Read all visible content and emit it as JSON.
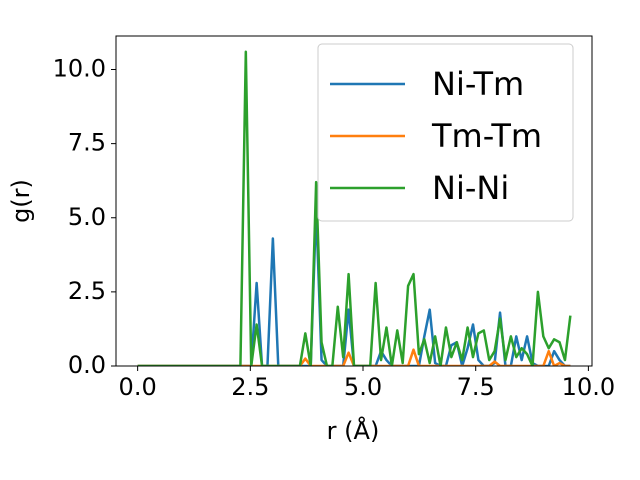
{
  "chart_data": {
    "type": "line",
    "xlabel": "r (Å)",
    "ylabel": "g(r)",
    "x": [
      0,
      0.12,
      0.24,
      0.36,
      0.48,
      0.6,
      0.72,
      0.84,
      0.96,
      1.08,
      1.2,
      1.32,
      1.44,
      1.56,
      1.68,
      1.8,
      1.92,
      2.04,
      2.16,
      2.28,
      2.4,
      2.52,
      2.64,
      2.76,
      2.88,
      3,
      3.12,
      3.24,
      3.36,
      3.48,
      3.6,
      3.72,
      3.84,
      3.96,
      4.08,
      4.2,
      4.32,
      4.44,
      4.56,
      4.68,
      4.8,
      4.92,
      5.04,
      5.16,
      5.28,
      5.4,
      5.52,
      5.64,
      5.76,
      5.88,
      6,
      6.12,
      6.24,
      6.36,
      6.48,
      6.6,
      6.72,
      6.84,
      6.96,
      7.08,
      7.2,
      7.32,
      7.44,
      7.56,
      7.68,
      7.8,
      7.92,
      8.04,
      8.16,
      8.28,
      8.4,
      8.52,
      8.64,
      8.76,
      8.88,
      9,
      9.12,
      9.24,
      9.36,
      9.48,
      9.6
    ],
    "series": [
      {
        "name": "Ni-Tm",
        "color": "#1f77b4",
        "values": [
          0,
          0,
          0,
          0,
          0,
          0,
          0,
          0,
          0,
          0,
          0,
          0,
          0,
          0,
          0,
          0,
          0,
          0,
          0,
          0,
          0,
          0,
          2.8,
          0,
          0,
          4.3,
          0,
          0,
          0,
          0,
          0,
          0,
          0,
          5.3,
          0.2,
          0,
          0,
          0,
          0,
          1.9,
          0,
          0,
          0,
          0,
          0,
          0.5,
          0.2,
          0,
          0,
          0,
          0,
          0,
          0,
          1,
          1.9,
          0.1,
          0,
          0,
          0.7,
          0.8,
          0,
          0.6,
          1.4,
          0.2,
          0,
          0,
          0.1,
          1.8,
          0,
          0,
          1,
          0.2,
          1,
          0.1,
          0,
          0,
          0,
          0.5,
          0.2,
          0,
          0
        ]
      },
      {
        "name": "Tm-Tm",
        "color": "#ff7f0e",
        "values": [
          0,
          0,
          0,
          0,
          0,
          0,
          0,
          0,
          0,
          0,
          0,
          0,
          0,
          0,
          0,
          0,
          0,
          0,
          0,
          0,
          0,
          0,
          0,
          0,
          0,
          0,
          0,
          0,
          0,
          0,
          0,
          0.25,
          0,
          0,
          0,
          0,
          0,
          0,
          0,
          0.45,
          0,
          0,
          0,
          0,
          0,
          0,
          0,
          0,
          0,
          0,
          0,
          0.55,
          0,
          0,
          0,
          0,
          0,
          0,
          0,
          0,
          0,
          0,
          0,
          0,
          0,
          0,
          0.15,
          0,
          0,
          0,
          0,
          0,
          0,
          0,
          0,
          0,
          0.5,
          0,
          0.1,
          0,
          0
        ]
      },
      {
        "name": "Ni-Ni",
        "color": "#2ca02c",
        "values": [
          0,
          0,
          0,
          0,
          0,
          0,
          0,
          0,
          0,
          0,
          0,
          0,
          0,
          0,
          0,
          0,
          0,
          0,
          0,
          0,
          10.6,
          0,
          1.4,
          0,
          0,
          0,
          0,
          0,
          0,
          0,
          0,
          1.1,
          0,
          6.2,
          0.8,
          0,
          0,
          2,
          0.3,
          3.1,
          0,
          0,
          0,
          0,
          2.8,
          0.2,
          1.3,
          0,
          1.2,
          0.1,
          2.7,
          3.1,
          0.4,
          0.9,
          0.1,
          1,
          0,
          1.3,
          0.3,
          0.8,
          0.2,
          1.3,
          0.3,
          1.1,
          1.2,
          0.2,
          0.5,
          1.6,
          0.2,
          1,
          0.3,
          0.6,
          0.4,
          0,
          2.5,
          1,
          0.6,
          0.9,
          0.8,
          0.2,
          1.7
        ]
      }
    ],
    "xlim": [
      -0.48,
      10.08
    ],
    "ylim": [
      0,
      11.13
    ],
    "xticks": [
      {
        "value": 0,
        "label": "0.0"
      },
      {
        "value": 2.5,
        "label": "2.5"
      },
      {
        "value": 5,
        "label": "5.0"
      },
      {
        "value": 7.5,
        "label": "7.5"
      },
      {
        "value": 10,
        "label": "10.0"
      }
    ],
    "yticks": [
      {
        "value": 0,
        "label": "0.0"
      },
      {
        "value": 2.5,
        "label": "2.5"
      },
      {
        "value": 5,
        "label": "5.0"
      },
      {
        "value": 7.5,
        "label": "7.5"
      },
      {
        "value": 10,
        "label": "10.0"
      }
    ],
    "legend": "upper right"
  }
}
